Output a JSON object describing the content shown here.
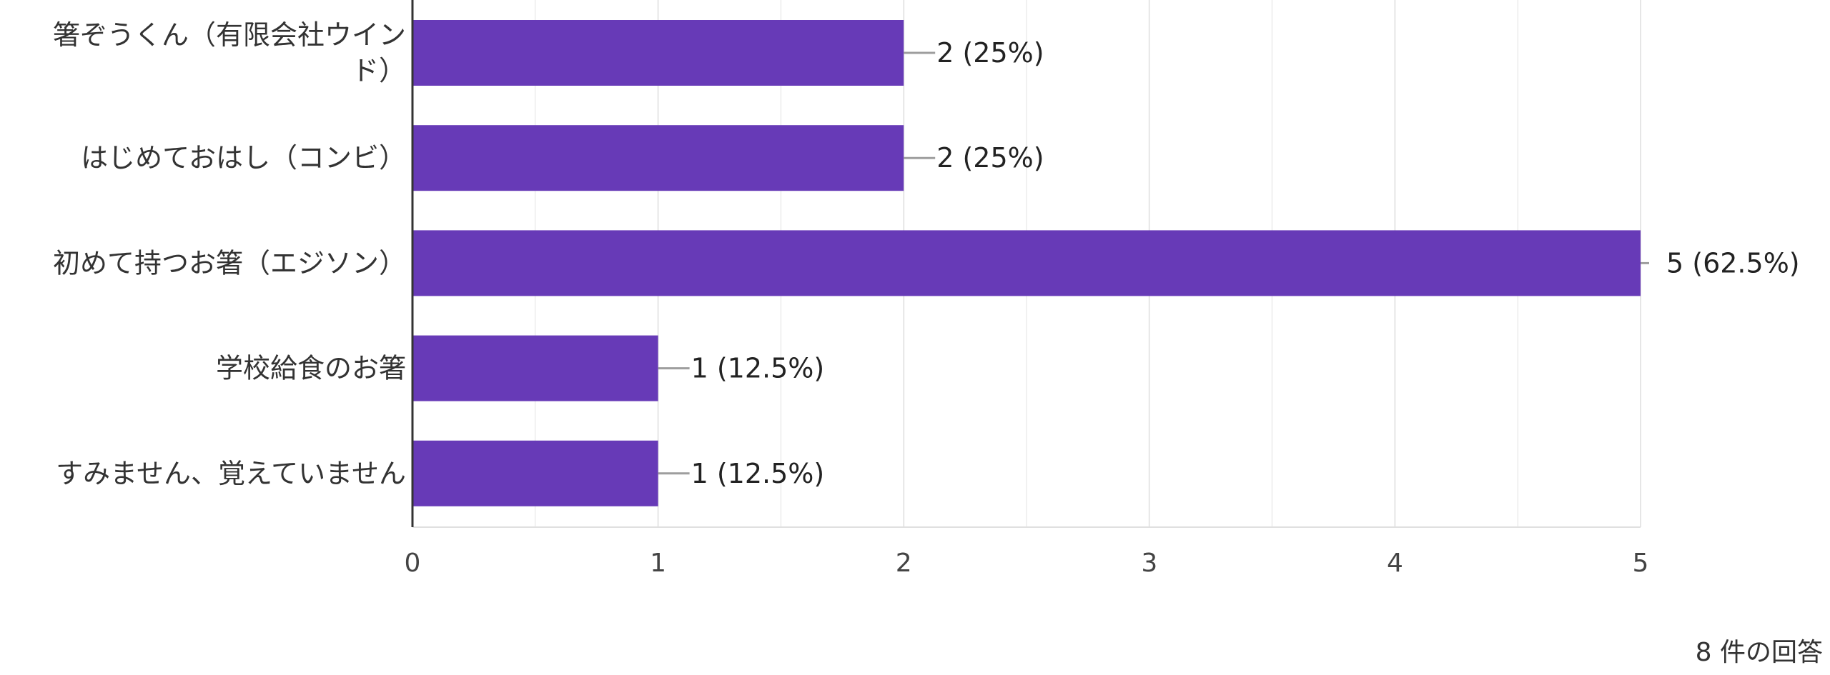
{
  "chart_data": {
    "type": "bar",
    "orientation": "horizontal",
    "categories": [
      [
        "箸ぞうくん（有限会社ウイン",
        "ド）"
      ],
      [
        "はじめておはし（コンビ）"
      ],
      [
        "初めて持つお箸（エジソン）"
      ],
      [
        "学校給食のお箸"
      ],
      [
        "すみません、覚えていません"
      ]
    ],
    "values": [
      2,
      2,
      5,
      1,
      1
    ],
    "value_labels": [
      "2 (25%)",
      "2 (25%)",
      "5 (62.5%)",
      "1 (12.5%)",
      "1 (12.5%)"
    ],
    "xlim": [
      0,
      5
    ],
    "x_ticks": [
      0,
      1,
      2,
      3,
      4,
      5
    ],
    "grid": true,
    "bar_color": "#673ab7"
  },
  "footer": {
    "responses": "8 件の回答"
  }
}
